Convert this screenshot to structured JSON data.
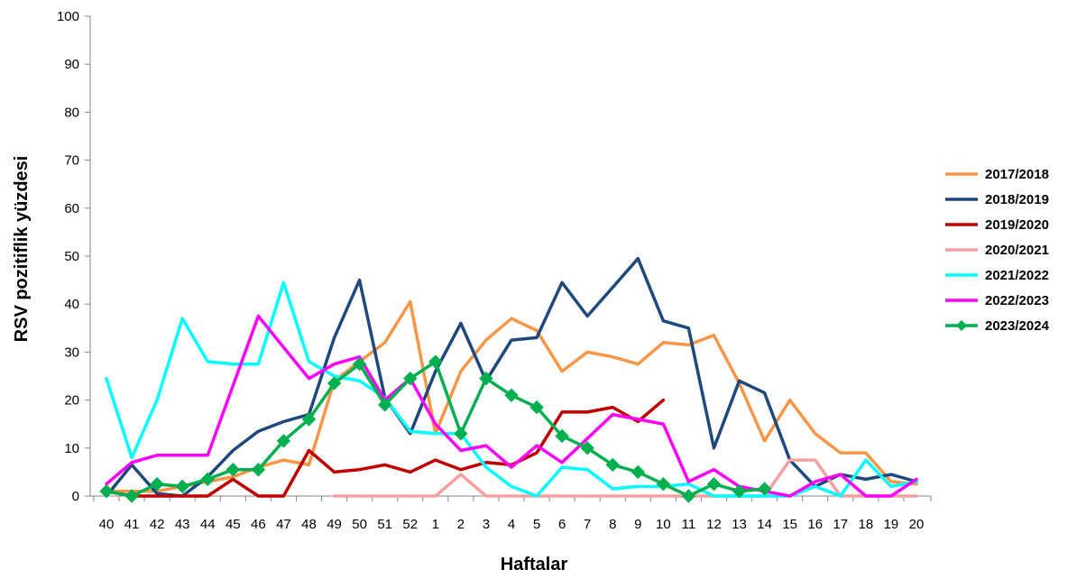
{
  "chart_data": {
    "type": "line",
    "title": "",
    "xlabel": "Haftalar",
    "ylabel": "RSV pozitiflik yüzdesi",
    "ylim": [
      0,
      100
    ],
    "yticks": [
      0,
      10,
      20,
      30,
      40,
      50,
      60,
      70,
      80,
      90,
      100
    ],
    "grid": false,
    "legend_position": "right",
    "categories": [
      "40",
      "41",
      "42",
      "43",
      "44",
      "45",
      "46",
      "47",
      "48",
      "49",
      "50",
      "51",
      "52",
      "1",
      "2",
      "3",
      "4",
      "5",
      "6",
      "7",
      "8",
      "9",
      "10",
      "11",
      "12",
      "13",
      "14",
      "15",
      "16",
      "17",
      "18",
      "19",
      "20"
    ],
    "series": [
      {
        "name": "2017/2018",
        "color": "#F79646",
        "marker": "none",
        "values": [
          1,
          1,
          1,
          2,
          3,
          4,
          6,
          7.5,
          6.5,
          24,
          28,
          32,
          40.5,
          13,
          26,
          32.5,
          37,
          34.5,
          26,
          30,
          29,
          27.5,
          32,
          31.5,
          33.5,
          23.5,
          11.5,
          20,
          13,
          9,
          9,
          3,
          2.5
        ]
      },
      {
        "name": "2018/2019",
        "color": "#1F497D",
        "marker": "none",
        "values": [
          0,
          6.5,
          0.5,
          0,
          4,
          9.5,
          13.5,
          15.5,
          17,
          33,
          45,
          20.5,
          13,
          26,
          36,
          24,
          32.5,
          33,
          44.5,
          37.5,
          43.5,
          49.5,
          36.5,
          35,
          10,
          24,
          21.5,
          7.5,
          2,
          4.5,
          3.5,
          4.5,
          3
        ]
      },
      {
        "name": "2019/2020",
        "color": "#C00000",
        "marker": "none",
        "values": [
          1,
          0,
          0,
          0,
          0,
          3.5,
          0,
          0,
          9.5,
          5,
          5.5,
          6.5,
          5,
          7.5,
          5.5,
          7,
          6.5,
          9,
          17.5,
          17.5,
          18.5,
          15.5,
          20,
          null,
          null,
          null,
          null,
          null,
          null,
          null,
          null,
          null,
          null
        ]
      },
      {
        "name": "2020/2021",
        "color": "#F4A0A0",
        "marker": "none",
        "values": [
          null,
          null,
          null,
          null,
          null,
          null,
          null,
          null,
          null,
          0,
          0,
          0,
          0,
          0,
          4.5,
          0,
          0,
          0,
          0,
          0,
          0,
          0,
          0,
          0,
          0,
          0,
          0,
          7.5,
          7.5,
          0,
          0,
          0,
          0
        ]
      },
      {
        "name": "2021/2022",
        "color": "#00FFFF",
        "marker": "none",
        "values": [
          24.5,
          8,
          20,
          37,
          28,
          27.5,
          27.5,
          44.5,
          28,
          25,
          24,
          20.5,
          13.5,
          13,
          13,
          6,
          2,
          0,
          6,
          5.5,
          1.5,
          2,
          2,
          2.5,
          0,
          0,
          0,
          0,
          2,
          0,
          7.5,
          2,
          3
        ]
      },
      {
        "name": "2022/2023",
        "color": "#FF00FF",
        "marker": "none",
        "values": [
          2.5,
          7,
          8.5,
          8.5,
          8.5,
          23,
          37.5,
          31,
          24.5,
          27.5,
          29,
          20,
          24.5,
          15,
          9.5,
          10.5,
          6,
          10.5,
          7,
          12,
          17,
          16,
          15,
          3,
          5.5,
          2,
          1,
          0,
          3,
          4.5,
          0,
          0,
          3.5
        ]
      },
      {
        "name": "2023/2024",
        "color": "#00B050",
        "marker": "diamond",
        "values": [
          1,
          0,
          2.5,
          2,
          3.5,
          5.5,
          5.5,
          11.5,
          16,
          23.5,
          27.5,
          19,
          24.5,
          28,
          13,
          24.5,
          21,
          18.5,
          12.5,
          10,
          6.5,
          5,
          2.5,
          0,
          2.5,
          1,
          1.5,
          null,
          null,
          null,
          null,
          null,
          null
        ]
      }
    ]
  }
}
